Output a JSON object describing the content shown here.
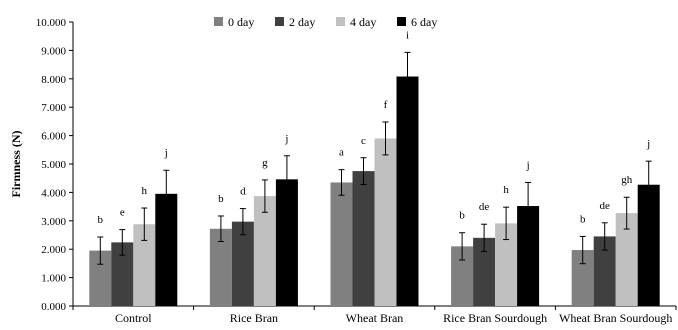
{
  "chart_data": {
    "type": "bar",
    "title": "",
    "xlabel": "",
    "ylabel": "Firmness  (N)",
    "ylim": [
      0,
      10000
    ],
    "y_ticks": [
      0,
      1000,
      2000,
      3000,
      4000,
      5000,
      6000,
      7000,
      8000,
      9000,
      10000
    ],
    "y_tick_labels": [
      "0.000",
      "1.000",
      "2.000",
      "3.000",
      "4.000",
      "5.000",
      "6.000",
      "7.000",
      "8.000",
      "9.000",
      "10.000"
    ],
    "categories": [
      "Control",
      "Rice Bran",
      "Wheat Bran",
      "Rice Bran Sourdough",
      "Wheat Bran Sourdough"
    ],
    "grid": false,
    "legend_position": "top-center",
    "error_bars": true,
    "series": [
      {
        "name": "0 day",
        "color": "#808080",
        "values": [
          1950,
          2720,
          4350,
          2100,
          1970
        ],
        "errors": [
          480,
          450,
          450,
          480,
          480
        ],
        "labels": [
          "b",
          "b",
          "a",
          "b",
          "b"
        ]
      },
      {
        "name": "2 day",
        "color": "#404040",
        "values": [
          2240,
          2970,
          4750,
          2400,
          2450
        ],
        "errors": [
          450,
          460,
          470,
          480,
          480
        ],
        "labels": [
          "e",
          "d",
          "c",
          "de",
          "de"
        ]
      },
      {
        "name": "4 day",
        "color": "#c0c0c0",
        "values": [
          2880,
          3870,
          5900,
          2910,
          3270
        ],
        "errors": [
          570,
          570,
          580,
          570,
          560
        ],
        "labels": [
          "h",
          "g",
          "f",
          "h",
          "gh"
        ]
      },
      {
        "name": "6 day",
        "color": "#000000",
        "values": [
          3950,
          4460,
          8080,
          3520,
          4270
        ],
        "errors": [
          830,
          830,
          850,
          830,
          830
        ],
        "labels": [
          "j",
          "j",
          "i",
          "j",
          "j"
        ]
      }
    ]
  }
}
